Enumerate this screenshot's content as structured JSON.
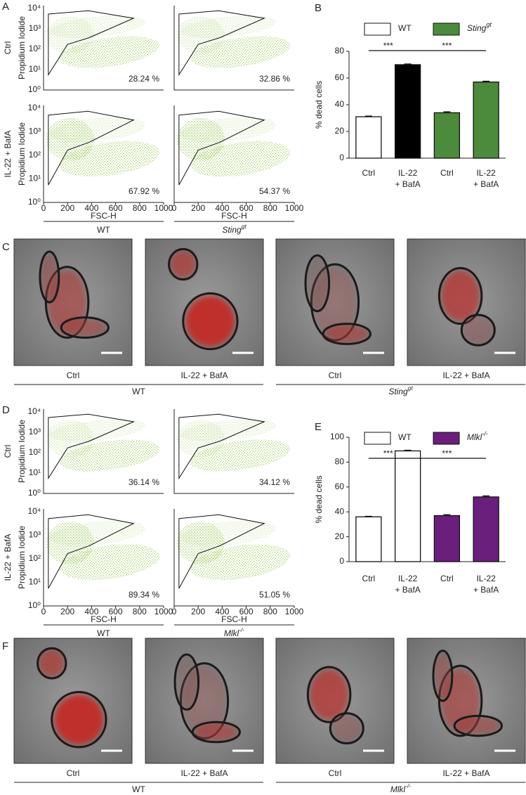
{
  "flow_panels": [
    {
      "letter": "A",
      "rows": [
        "Ctrl",
        "IL-22 + BafA"
      ],
      "y_label": "Propidium Iodide",
      "y_ticks": [
        "10⁰",
        "10¹",
        "10²",
        "10³",
        "10⁴"
      ],
      "x_ticks": [
        0,
        200,
        400,
        600,
        800,
        1000
      ],
      "xlim": [
        0,
        1000
      ],
      "x_label": "FSC-H",
      "genotypes": [
        {
          "name": "WT"
        },
        {
          "name": "Sting",
          "sup": "gt"
        }
      ],
      "percentages": [
        [
          "28.24 %",
          "32.86 %"
        ],
        [
          "67.92 %",
          "54.37 %"
        ]
      ]
    },
    {
      "letter": "D",
      "rows": [
        "Ctrl",
        "IL-22 + BafA"
      ],
      "y_label": "Propidium Iodide",
      "y_ticks": [
        "10⁰",
        "10¹",
        "10²",
        "10³",
        "10⁴"
      ],
      "x_ticks": [
        0,
        200,
        400,
        600,
        800,
        1000
      ],
      "xlim": [
        0,
        1000
      ],
      "x_label": "FSC-H",
      "genotypes": [
        {
          "name": "WT"
        },
        {
          "name": "Mlkl",
          "sup": "-/-"
        }
      ],
      "percentages": [
        [
          "36.14 %",
          "34.12 %"
        ],
        [
          "89.34 %",
          "51.05 %"
        ]
      ]
    }
  ],
  "chart_data": [
    {
      "type": "bar",
      "letter": "B",
      "y_label": "% dead cells",
      "legend": [
        {
          "name": "WT",
          "color": "#ffffff"
        },
        {
          "name": "Sting",
          "sup": "gt",
          "color": "#4b8b3b"
        }
      ],
      "categories": [
        [
          "Ctrl"
        ],
        [
          "IL-22",
          "+ BafA"
        ],
        [
          "Ctrl"
        ],
        [
          "IL-22",
          "+ BafA"
        ]
      ],
      "values": [
        31,
        70,
        34,
        57
      ],
      "errors": [
        0.5,
        0.5,
        0.7,
        0.6
      ],
      "colors": [
        "#ffffff",
        "#000000",
        "#4b8b3b",
        "#4b8b3b"
      ],
      "ylim": [
        0,
        80
      ],
      "yticks": [
        0,
        20,
        40,
        60,
        80
      ],
      "significance": [
        "***",
        "***"
      ]
    },
    {
      "type": "bar",
      "letter": "E",
      "y_label": "% dead cells",
      "legend": [
        {
          "name": "WT",
          "color": "#ffffff"
        },
        {
          "name": "Mlkl",
          "sup": "-/-",
          "color": "#6b1f7c"
        }
      ],
      "categories": [
        [
          "Ctrl"
        ],
        [
          "IL-22",
          "+ BafA"
        ],
        [
          "Ctrl"
        ],
        [
          "IL-22",
          "+ BafA"
        ]
      ],
      "values": [
        36,
        89,
        37,
        52
      ],
      "errors": [
        0.4,
        0.5,
        0.8,
        0.8
      ],
      "colors": [
        "#ffffff",
        "#ffffff",
        "#6b1f7c",
        "#6b1f7c"
      ],
      "ylim": [
        0,
        100
      ],
      "yticks": [
        0,
        20,
        40,
        60,
        80,
        100
      ],
      "significance": [
        "***",
        "***"
      ]
    }
  ],
  "image_panels": [
    {
      "letter": "C",
      "labels": [
        "Ctrl",
        "IL-22 + BafA",
        "Ctrl",
        "IL-22 + BafA"
      ],
      "genotypes": [
        {
          "name": "WT"
        },
        {
          "name": "Sting",
          "sup": "gt"
        }
      ]
    },
    {
      "letter": "F",
      "labels": [
        "Ctrl",
        "IL-22 + BafA",
        "Ctrl",
        "IL-22 + BafA"
      ],
      "genotypes": [
        {
          "name": "WT"
        },
        {
          "name": "Mlkl",
          "sup": "-/-"
        }
      ]
    }
  ]
}
